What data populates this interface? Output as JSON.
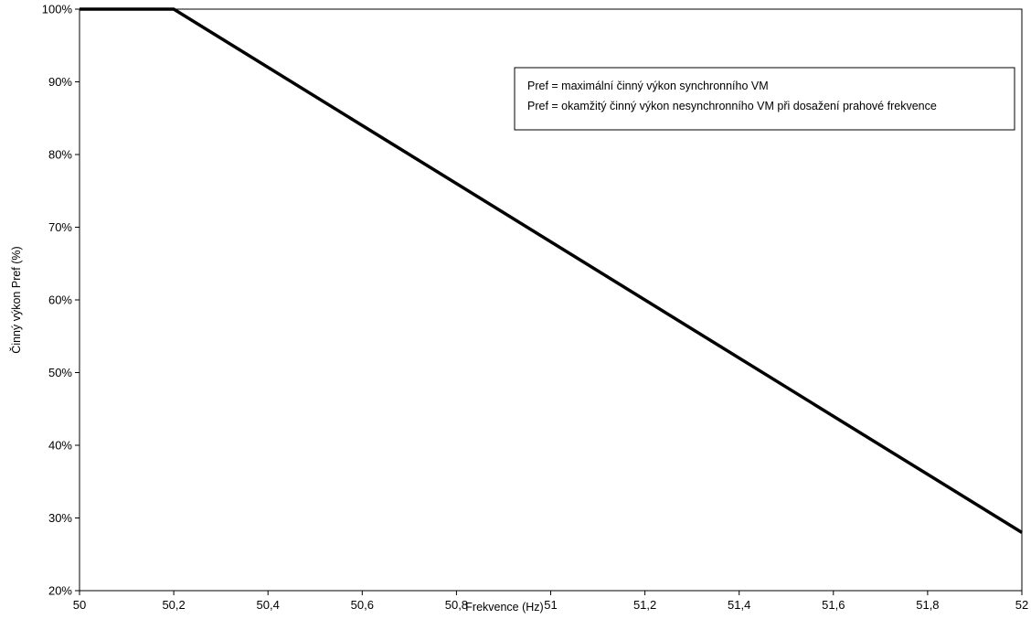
{
  "chart_data": {
    "type": "line",
    "xlabel": "Frekvence (Hz)",
    "ylabel": "Činný výkon Pref (%)",
    "xlim": [
      50,
      52
    ],
    "ylim": [
      20,
      100
    ],
    "x_ticks": [
      50,
      50.2,
      50.4,
      50.6,
      50.8,
      51,
      51.2,
      51.4,
      51.6,
      51.8,
      52
    ],
    "x_tick_labels": [
      "50",
      "50,2",
      "50,4",
      "50,6",
      "50,8",
      "51",
      "51,2",
      "51,4",
      "51,6",
      "51,8",
      "52"
    ],
    "y_ticks": [
      20,
      30,
      40,
      50,
      60,
      70,
      80,
      90,
      100
    ],
    "y_tick_labels": [
      "20%",
      "30%",
      "40%",
      "50%",
      "60%",
      "70%",
      "80%",
      "90%",
      "100%"
    ],
    "grid": false,
    "series": [
      {
        "x": [
          50,
          50.2,
          52
        ],
        "y": [
          100,
          100,
          28
        ],
        "color": "#000000"
      }
    ],
    "annotations": [
      "Pref = maximální činný výkon synchronního VM",
      "Pref = okamžitý činný výkon nesynchronního VM při dosažení prahové frekvence"
    ],
    "annotation_placement": "top-right"
  }
}
